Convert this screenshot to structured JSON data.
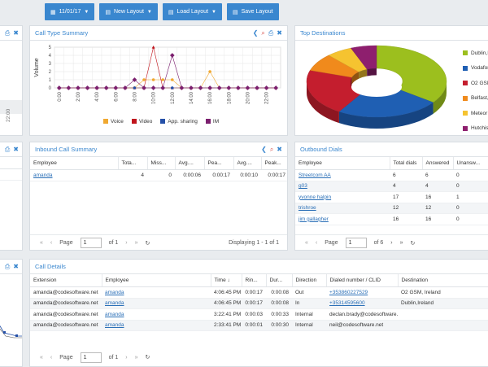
{
  "toolbar": {
    "date": "11/01/17",
    "new_layout": "New Layout",
    "load_layout": "Load Layout",
    "save_layout": "Save Layout"
  },
  "left_edge": {
    "axis_tick": "22:00"
  },
  "call_type_summary": {
    "title": "Call Type Summary",
    "chart_data": {
      "type": "line",
      "ylabel": "Volume",
      "ylim": [
        0,
        5
      ],
      "yticks": [
        "0",
        "1",
        "2",
        "3",
        "4",
        "5"
      ],
      "x": [
        "0:00",
        "1:00",
        "2:00",
        "3:00",
        "4:00",
        "5:00",
        "6:00",
        "7:00",
        "8:00",
        "9:00",
        "10:00",
        "11:00",
        "12:00",
        "13:00",
        "14:00",
        "15:00",
        "16:00",
        "17:00",
        "18:00",
        "19:00",
        "20:00",
        "21:00",
        "22:00",
        "23:00"
      ],
      "xticks": [
        "0:00",
        "2:00",
        "4:00",
        "6:00",
        "8:00",
        "10:00",
        "12:00",
        "14:00",
        "16:00",
        "18:00",
        "20:00",
        "22:00"
      ],
      "series": [
        {
          "name": "Voice",
          "color": "#f0a830",
          "values": [
            0,
            0,
            0,
            0,
            0,
            0,
            0,
            0,
            0,
            1,
            1,
            1,
            1,
            0,
            0,
            0,
            2,
            0,
            0,
            0,
            0,
            0,
            0,
            0
          ]
        },
        {
          "name": "Video",
          "color": "#c0141c",
          "values": [
            0,
            0,
            0,
            0,
            0,
            0,
            0,
            0,
            0,
            0,
            5,
            0,
            0,
            0,
            0,
            0,
            0,
            0,
            0,
            0,
            0,
            0,
            0,
            0
          ]
        },
        {
          "name": "App. sharing",
          "color": "#2550a8",
          "values": [
            0,
            0,
            0,
            0,
            0,
            0,
            0,
            0,
            0,
            0,
            0,
            0,
            0,
            0,
            0,
            0,
            0,
            0,
            0,
            0,
            0,
            0,
            0,
            0
          ]
        },
        {
          "name": "IM",
          "color": "#7b1f6e",
          "values": [
            0,
            0,
            0,
            0,
            0,
            0,
            0,
            0,
            1,
            0,
            0,
            0,
            4,
            0,
            0,
            0,
            0,
            0,
            0,
            0,
            0,
            0,
            0,
            0
          ]
        }
      ]
    }
  },
  "top_destinations": {
    "title": "Top Destinations",
    "legend": [
      {
        "label": "Dublin,Ir...",
        "color": "#9cbf1e"
      },
      {
        "label": "Vodafon...",
        "color": "#1f5fb3"
      },
      {
        "label": "O2 GSM...",
        "color": "#c41e2e"
      },
      {
        "label": "Belfast, ...",
        "color": "#f08a1c"
      },
      {
        "label": "Meteor ...",
        "color": "#f5c330"
      },
      {
        "label": "Hutchis...",
        "color": "#8e1f6e"
      }
    ],
    "chart_data": {
      "type": "pie",
      "categories": [
        "Dublin,Ir...",
        "Vodafon...",
        "O2 GSM...",
        "Belfast, ...",
        "Meteor ...",
        "Hutchis..."
      ],
      "values": [
        35,
        24,
        21,
        8,
        6,
        6
      ]
    }
  },
  "inbound_summary": {
    "title": "Inbound Call Summary",
    "columns": [
      "Employee",
      "Tota...",
      "Miss...",
      "Avg....",
      "Pea...",
      "Avg....",
      "Peak..."
    ],
    "rows": [
      [
        "amanda",
        "4",
        "0",
        "0:00:06",
        "0:00:17",
        "0:00:10",
        "0:00:17"
      ]
    ],
    "pager": {
      "page_label": "Page",
      "page": "1",
      "of": "of 1",
      "displaying": "Displaying 1 - 1 of 1"
    }
  },
  "outbound_dials": {
    "title": "Outbound Dials",
    "columns": [
      "Employee",
      "Total dials",
      "Answered",
      "Unansw..."
    ],
    "rows": [
      [
        "Streetcom AA",
        "6",
        "6",
        "0"
      ],
      [
        "g03",
        "4",
        "4",
        "0"
      ],
      [
        "yvonne halpin",
        "17",
        "16",
        "1"
      ],
      [
        "trishroe",
        "12",
        "12",
        "0"
      ],
      [
        "jim gallagher",
        "16",
        "16",
        "0"
      ]
    ],
    "pager": {
      "page_label": "Page",
      "page": "1",
      "of": "of 6"
    }
  },
  "call_details": {
    "title": "Call Details",
    "columns": [
      "Extension",
      "Employee",
      "Time ↓",
      "Rin...",
      "Dur...",
      "Direction",
      "Dialed number / CLID",
      "Destination"
    ],
    "rows": [
      [
        "amanda@codesoftware.net",
        "amanda",
        "4:06:45 PM",
        "0:00:17",
        "0:00:08",
        "Out",
        "+353860227529",
        "O2 GSM, Ireland"
      ],
      [
        "amanda@codesoftware.net",
        "amanda",
        "4:06:45 PM",
        "0:00:17",
        "0:00:08",
        "In",
        "+35314595600",
        "Dublin,Ireland"
      ],
      [
        "amanda@codesoftware.net",
        "amanda",
        "3:22:41 PM",
        "0:00:03",
        "0:00:33",
        "Internal",
        "declan.brady@codesoftware...",
        ""
      ],
      [
        "amanda@codesoftware.net",
        "amanda",
        "2:33:41 PM",
        "0:00:01",
        "0:00:30",
        "Internal",
        "neil@codesoftware.net",
        ""
      ]
    ],
    "pager": {
      "page_label": "Page",
      "page": "1",
      "of": "of 1"
    }
  }
}
